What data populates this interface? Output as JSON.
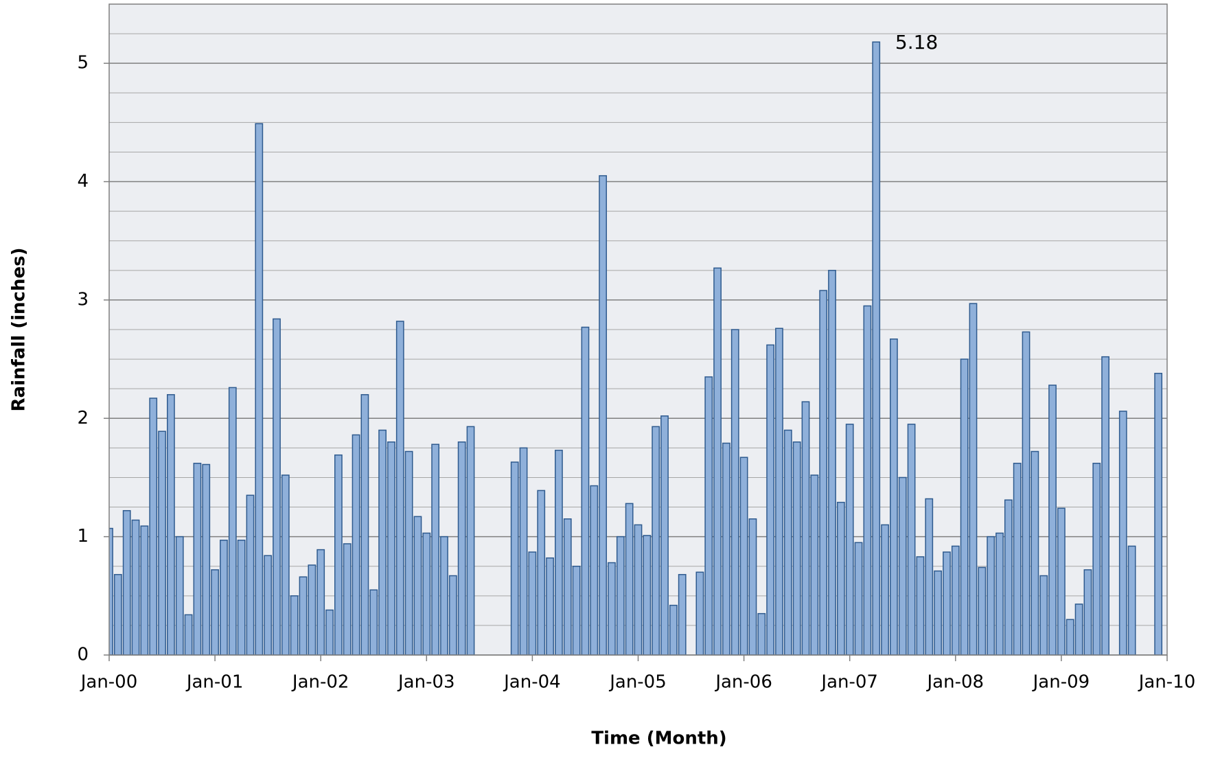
{
  "chart_data": {
    "type": "bar",
    "x_label": "Time (Month)",
    "y_label": "Rainfall (inches)",
    "color": "#8fb0da",
    "edge_color": "#2e5a8e",
    "grid": true,
    "x": [
      0,
      1,
      2,
      3,
      4,
      5,
      6,
      7,
      8,
      9,
      10,
      11,
      12,
      13,
      14,
      15,
      16,
      17,
      18,
      19,
      20,
      21,
      22,
      23,
      24,
      25,
      26,
      27,
      28,
      29,
      30,
      31,
      32,
      33,
      34,
      35,
      36,
      37,
      38,
      39,
      40,
      41,
      42,
      43,
      44,
      45,
      46,
      47,
      48,
      49,
      50,
      51,
      52,
      53,
      54,
      55,
      56,
      57,
      58,
      59,
      60,
      61,
      62,
      63,
      64,
      65,
      66,
      67,
      68,
      69,
      70,
      71,
      72,
      73,
      74,
      75,
      76,
      77,
      78,
      79,
      80,
      81,
      82,
      83,
      84,
      85,
      86,
      87,
      88,
      89,
      90,
      91,
      92,
      93,
      94,
      95,
      96,
      97,
      98,
      99,
      100,
      101,
      102,
      103,
      104,
      105,
      106,
      107,
      108,
      109,
      110,
      111,
      112,
      113,
      114,
      115,
      116,
      117,
      118,
      119
    ],
    "values": [
      1.07,
      0.68,
      1.22,
      1.14,
      1.09,
      2.17,
      1.89,
      2.2,
      1.0,
      0.34,
      1.62,
      1.61,
      0.72,
      0.97,
      2.26,
      0.97,
      1.35,
      4.49,
      0.84,
      2.84,
      1.52,
      0.5,
      0.66,
      0.76,
      0.89,
      0.38,
      1.69,
      0.94,
      1.86,
      2.2,
      0.55,
      1.9,
      1.8,
      2.82,
      1.72,
      1.17,
      1.03,
      1.78,
      1.0,
      0.67,
      1.8,
      1.93,
      null,
      null,
      null,
      null,
      1.63,
      1.75,
      0.87,
      1.39,
      0.82,
      1.73,
      1.15,
      0.75,
      2.77,
      1.43,
      4.05,
      0.78,
      1.0,
      1.28,
      1.1,
      1.01,
      1.93,
      2.02,
      0.42,
      0.68,
      null,
      0.7,
      2.35,
      3.27,
      1.79,
      2.75,
      1.67,
      1.15,
      0.35,
      2.62,
      2.76,
      1.9,
      1.8,
      2.14,
      1.52,
      3.08,
      3.25,
      1.29,
      1.95,
      0.95,
      2.95,
      5.18,
      1.1,
      2.67,
      1.5,
      1.95,
      0.83,
      1.32,
      0.71,
      0.87,
      0.92,
      2.5,
      2.97,
      0.74,
      1.0,
      1.03,
      1.31,
      1.62,
      2.73,
      1.72,
      0.67,
      2.28,
      1.24,
      0.3,
      0.43,
      0.72,
      1.62,
      2.52,
      null,
      2.06,
      0.92,
      null,
      null,
      2.38
    ],
    "data_label_indices": [
      87
    ],
    "xlim": [
      0,
      120
    ],
    "xticks": [
      {
        "value": 0,
        "label": "Jan-00"
      },
      {
        "value": 12,
        "label": "Jan-01"
      },
      {
        "value": 24,
        "label": "Jan-02"
      },
      {
        "value": 36,
        "label": "Jan-03"
      },
      {
        "value": 48,
        "label": "Jan-04"
      },
      {
        "value": 60,
        "label": "Jan-05"
      },
      {
        "value": 72,
        "label": "Jan-06"
      },
      {
        "value": 84,
        "label": "Jan-07"
      },
      {
        "value": 96,
        "label": "Jan-08"
      },
      {
        "value": 108,
        "label": "Jan-09"
      },
      {
        "value": 120,
        "label": "Jan-10"
      }
    ],
    "ylim": [
      0,
      5.5
    ],
    "yticks": [
      0,
      1,
      2,
      3,
      4,
      5
    ],
    "minor_yticks": [
      0.25,
      0.5,
      0.75,
      1.25,
      1.5,
      1.75,
      2.25,
      2.5,
      2.75,
      3.25,
      3.5,
      3.75,
      4.25,
      4.5,
      4.75,
      5.25
    ]
  }
}
